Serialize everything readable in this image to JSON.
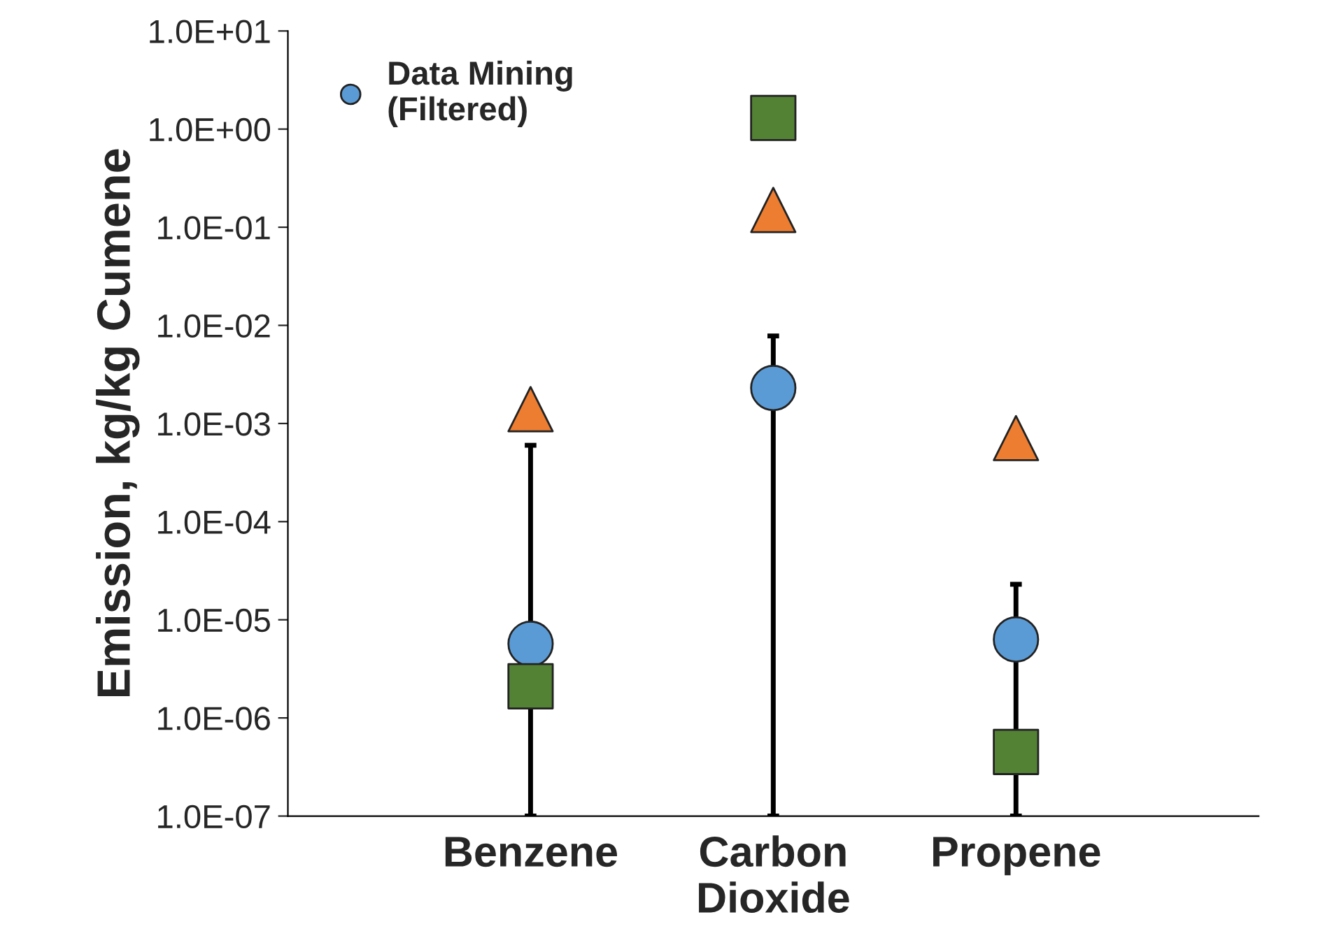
{
  "chart_data": {
    "type": "scatter",
    "ylabel": "Emission, kg/kg Cumene",
    "categories": [
      "Benzene",
      "Carbon\nDioxide",
      "Propene"
    ],
    "series": [
      {
        "name": "Data Mining\n(Filtered)",
        "color": "#5b9bd5",
        "marker": "circle",
        "values": [
          5.7e-06,
          0.0023,
          6.3e-06
        ],
        "errors": [
          [
            1e-07,
            0.0006
          ],
          [
            1e-07,
            0.0078
          ],
          [
            1e-07,
            2.3e-05
          ]
        ]
      },
      {
        "color": "#ed7d31",
        "marker": "triangle",
        "values": [
          0.0014,
          0.15,
          0.00071
        ]
      },
      {
        "color": "#548235",
        "marker": "square",
        "values": [
          2.1e-06,
          1.3,
          4.5e-07
        ]
      }
    ],
    "log": "y",
    "ylim": [
      1e-07,
      10
    ],
    "yticks": [
      {
        "value": 1e-07,
        "label": "1.0E-07"
      },
      {
        "value": 1e-06,
        "label": "1.0E-06"
      },
      {
        "value": 1e-05,
        "label": "1.0E-05"
      },
      {
        "value": 0.0001,
        "label": "1.0E-04"
      },
      {
        "value": 0.001,
        "label": "1.0E-03"
      },
      {
        "value": 0.01,
        "label": "1.0E-02"
      },
      {
        "value": 0.1,
        "label": "1.0E-01"
      },
      {
        "value": 1,
        "label": "1.0E+00"
      },
      {
        "value": 10,
        "label": "1.0E+01"
      }
    ],
    "grid": false,
    "legend": "top left"
  }
}
